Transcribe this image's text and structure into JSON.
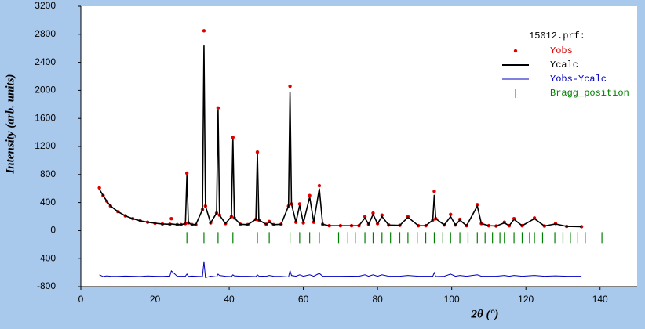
{
  "chart_data": {
    "type": "line",
    "xlabel": "2θ (°)",
    "ylabel": "Intensity (arb. units)",
    "xlim": [
      0,
      150
    ],
    "ylim": [
      -800,
      3200
    ],
    "xticks": [
      0,
      20,
      40,
      60,
      80,
      100,
      120,
      140
    ],
    "yticks": [
      3200,
      2800,
      2400,
      2000,
      1600,
      1200,
      800,
      400,
      0,
      -400,
      -800
    ],
    "legend_title": "15012.prf:",
    "legend": "upper right",
    "x": [
      5,
      6,
      7,
      8,
      10,
      12,
      14,
      16,
      18,
      20,
      22,
      24,
      24.4,
      26,
      27,
      28.2,
      28.6,
      29.0,
      30,
      31,
      32.8,
      33.2,
      33.6,
      35,
      36.6,
      37.0,
      37.4,
      39,
      40.6,
      41.0,
      41.4,
      43,
      45,
      47.2,
      47.6,
      48.0,
      50,
      50.8,
      52,
      54,
      56.0,
      56.4,
      56.8,
      58,
      59.0,
      60,
      61.7,
      62.8,
      64.3,
      65.2,
      67,
      70,
      73,
      75,
      76.6,
      77.6,
      78.8,
      80,
      81.2,
      83,
      86,
      88.2,
      91,
      93,
      94.9,
      95.3,
      95.7,
      98,
      99.7,
      101,
      102.2,
      104,
      106.9,
      108,
      110,
      112,
      114.2,
      115.5,
      116.8,
      119,
      122.3,
      125,
      128,
      131,
      135
    ],
    "series": [
      {
        "name": "Yobs",
        "color": "#e00000",
        "style": "points",
        "values": [
          610,
          500,
          420,
          350,
          270,
          210,
          170,
          140,
          120,
          105,
          95,
          90,
          170,
          85,
          85,
          100,
          820,
          110,
          85,
          85,
          300,
          2850,
          350,
          110,
          250,
          1750,
          220,
          100,
          200,
          1330,
          180,
          90,
          85,
          160,
          1120,
          150,
          90,
          130,
          85,
          90,
          350,
          2060,
          380,
          120,
          380,
          110,
          500,
          120,
          640,
          90,
          70,
          70,
          70,
          70,
          200,
          90,
          250,
          100,
          220,
          80,
          75,
          200,
          70,
          70,
          150,
          560,
          170,
          80,
          230,
          80,
          160,
          70,
          370,
          100,
          70,
          65,
          120,
          70,
          170,
          70,
          180,
          65,
          100,
          60,
          55
        ]
      },
      {
        "name": "Ycalc",
        "color": "#000000",
        "style": "line",
        "values": [
          590,
          500,
          420,
          350,
          270,
          210,
          170,
          140,
          120,
          105,
          95,
          90,
          95,
          85,
          85,
          100,
          790,
          110,
          85,
          85,
          300,
          2640,
          350,
          110,
          250,
          1720,
          220,
          100,
          200,
          1310,
          180,
          90,
          85,
          160,
          1100,
          150,
          90,
          120,
          85,
          90,
          350,
          1980,
          380,
          120,
          360,
          110,
          480,
          120,
          600,
          90,
          70,
          70,
          70,
          70,
          180,
          90,
          230,
          100,
          200,
          80,
          75,
          190,
          70,
          70,
          150,
          510,
          170,
          80,
          200,
          80,
          150,
          70,
          350,
          100,
          70,
          65,
          110,
          70,
          160,
          70,
          170,
          65,
          95,
          60,
          55
        ]
      },
      {
        "name": "Yobs-Ycalc",
        "color": "#0000c0",
        "style": "line",
        "values": [
          -630,
          -655,
          -645,
          -650,
          -652,
          -648,
          -650,
          -653,
          -647,
          -650,
          -652,
          -648,
          -575,
          -650,
          -651,
          -649,
          -620,
          -652,
          -648,
          -650,
          -655,
          -440,
          -670,
          -650,
          -660,
          -620,
          -640,
          -650,
          -655,
          -630,
          -645,
          -650,
          -650,
          -655,
          -630,
          -648,
          -650,
          -640,
          -650,
          -652,
          -660,
          -570,
          -640,
          -650,
          -630,
          -650,
          -630,
          -650,
          -610,
          -650,
          -650,
          -651,
          -649,
          -650,
          -630,
          -650,
          -630,
          -650,
          -630,
          -650,
          -650,
          -640,
          -650,
          -650,
          -650,
          -600,
          -655,
          -650,
          -620,
          -650,
          -640,
          -650,
          -630,
          -650,
          -650,
          -650,
          -640,
          -650,
          -640,
          -650,
          -640,
          -650,
          -645,
          -650,
          -650
        ]
      },
      {
        "name": "Bragg_position",
        "color": "#008000",
        "style": "ticks",
        "x": [
          28.6,
          33.2,
          37.0,
          41.0,
          47.6,
          50.8,
          56.4,
          59.0,
          61.7,
          64.3,
          69.5,
          72.0,
          74.0,
          76.6,
          78.8,
          81.2,
          83.5,
          86.0,
          88.2,
          90.7,
          93.0,
          95.3,
          97.6,
          99.7,
          102.2,
          104.4,
          106.9,
          109.0,
          111.0,
          113.0,
          114.2,
          116.8,
          119.0,
          121.0,
          122.3,
          124.5,
          127.8,
          130.0,
          132.0,
          134.0,
          136.0,
          140.5
        ],
        "values": [
          -100,
          -100,
          -100,
          -100,
          -100,
          -100,
          -100,
          -100,
          -100,
          -100,
          -100,
          -100,
          -100,
          -100,
          -100,
          -100,
          -100,
          -100,
          -100,
          -100,
          -100,
          -100,
          -100,
          -100,
          -100,
          -100,
          -100,
          -100,
          -100,
          -100,
          -100,
          -100,
          -100,
          -100,
          -100,
          -100,
          -100,
          -100,
          -100,
          -100,
          -100,
          -100
        ]
      }
    ]
  }
}
